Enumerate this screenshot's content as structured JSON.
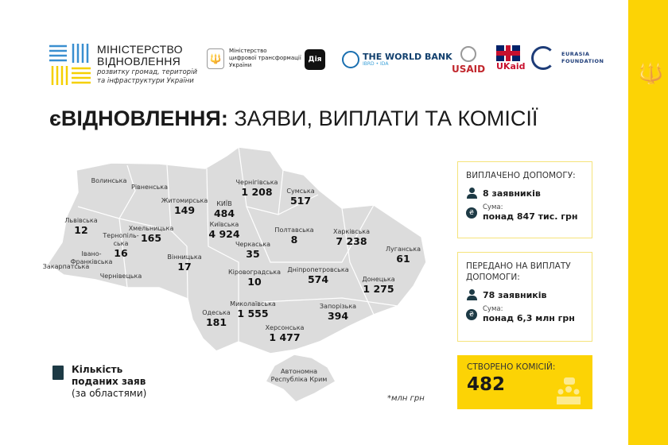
{
  "header": {
    "ministry_title_line1": "МІНІСТЕРСТВО",
    "ministry_title_line2": "ВІДНОВЛЕННЯ",
    "ministry_subtitle_line1": "розвитку громад, територій",
    "ministry_subtitle_line2": "та інфраструктури України",
    "mdt_line1": "Міністерство",
    "mdt_line2": "цифрової трансформації",
    "mdt_line3": "України",
    "diya": "Дія",
    "world_bank": "THE WORLD BANK",
    "world_bank_sub": "IBRD • IDA",
    "usaid": "USAID",
    "ukaid": "UKaid",
    "eurasia_line1": "EURASIA",
    "eurasia_line2": "FOUNDATION"
  },
  "title": {
    "bold": "єВІДНОВЛЕННЯ:",
    "rest": " ЗАЯВИ, ВИПЛАТИ ТА КОМІСІЇ"
  },
  "regions": [
    {
      "name": "Волинська",
      "value": ""
    },
    {
      "name": "Рівненська",
      "value": ""
    },
    {
      "name": "Житомирська",
      "value": "149"
    },
    {
      "name": "КИЇВ",
      "value": "484"
    },
    {
      "name": "Київська",
      "value": "4 924"
    },
    {
      "name": "Чернігівська",
      "value": "1 208"
    },
    {
      "name": "Сумська",
      "value": "517"
    },
    {
      "name": "Львівська",
      "value": "12"
    },
    {
      "name": "Тернопіль-\nська",
      "value": "16"
    },
    {
      "name": "Хмельницька",
      "value": "165"
    },
    {
      "name": "Івано-\nФранківська",
      "value": ""
    },
    {
      "name": "Закарпатська",
      "value": ""
    },
    {
      "name": "Чернівецька",
      "value": ""
    },
    {
      "name": "Вінницька",
      "value": "17"
    },
    {
      "name": "Черкаська",
      "value": "35"
    },
    {
      "name": "Полтавська",
      "value": "8"
    },
    {
      "name": "Харківська",
      "value": "7 238"
    },
    {
      "name": "Луганська",
      "value": "61"
    },
    {
      "name": "Кіровоградська",
      "value": "10"
    },
    {
      "name": "Дніпропетровська",
      "value": "574"
    },
    {
      "name": "Донецька",
      "value": "1 275"
    },
    {
      "name": "Одеська",
      "value": "181"
    },
    {
      "name": "Миколаївська",
      "value": "1 555"
    },
    {
      "name": "Запорізька",
      "value": "394"
    },
    {
      "name": "Херсонська",
      "value": "1 477"
    },
    {
      "name": "Автономна\nРеспубліка Крим",
      "value": ""
    }
  ],
  "paid": {
    "heading": "ВИПЛАЧЕНО ДОПОМОГУ:",
    "applicants": "8 заявників",
    "sum_label": "Сума:",
    "sum": "понад 847 тис. грн"
  },
  "transferred": {
    "heading": "ПЕРЕДАНО НА ВИПЛАТУ ДОПОМОГИ:",
    "applicants": "78 заявників",
    "sum_label": "Сума:",
    "sum": "понад 6,3 млн грн"
  },
  "commissions": {
    "heading": "СТВОРЕНО КОМІСІЙ:",
    "value": "482"
  },
  "legend": {
    "line1": "Кількість",
    "line2": "поданих заяв",
    "line3": "(за областями)"
  },
  "note": "*млн грн",
  "colors": {
    "accent_yellow": "#fcd305",
    "map_fill": "#dcdcdc",
    "dark_icon": "#1d3a45",
    "box_border": "#f5e37a"
  }
}
